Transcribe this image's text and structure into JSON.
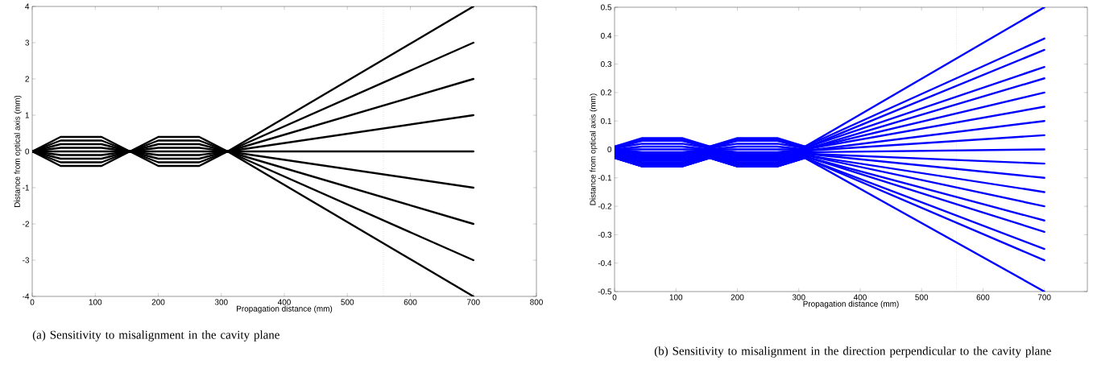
{
  "chart_data": [
    {
      "type": "line",
      "xlabel": "Propagation distance (mm)",
      "ylabel": "Distance from optical axis (mm)",
      "annotations": [
        "(a) Sensitivity to misalignment in the cavity plane"
      ],
      "xlim": [
        0,
        800
      ],
      "ylim": [
        -4,
        4
      ],
      "xticks": [
        0,
        100,
        200,
        300,
        400,
        500,
        600,
        700,
        800
      ],
      "yticks": [
        -4,
        -3,
        -2,
        -1,
        0,
        1,
        2,
        3,
        4
      ],
      "marker": "none",
      "line_style": "solid",
      "x": [
        0,
        45,
        110,
        155,
        200,
        265,
        310,
        700
      ],
      "ref_lines": [
        {
          "axis": "x",
          "value": 557,
          "color": "#aaaaaa",
          "line_style": "dotted"
        }
      ],
      "series": [
        {
          "color": "#000000",
          "values": [
            0,
            0.4,
            0.4,
            0,
            0.4,
            0.4,
            0,
            4
          ]
        },
        {
          "color": "#000000",
          "values": [
            0,
            0.3,
            0.3,
            0,
            0.3,
            0.3,
            0,
            3
          ]
        },
        {
          "color": "#000000",
          "values": [
            0,
            0.2,
            0.2,
            0,
            0.2,
            0.2,
            0,
            2
          ]
        },
        {
          "color": "#000000",
          "values": [
            0,
            0.1,
            0.1,
            0,
            0.1,
            0.1,
            0,
            1
          ]
        },
        {
          "color": "#000000",
          "values": [
            0,
            0,
            0,
            0,
            0,
            0,
            0,
            0
          ]
        },
        {
          "color": "#000000",
          "values": [
            0,
            -0.1,
            -0.1,
            0,
            -0.1,
            -0.1,
            0,
            -1
          ]
        },
        {
          "color": "#000000",
          "values": [
            0,
            -0.2,
            -0.2,
            0,
            -0.2,
            -0.2,
            0,
            -2
          ]
        },
        {
          "color": "#000000",
          "values": [
            0,
            -0.3,
            -0.3,
            0,
            -0.3,
            -0.3,
            0,
            -3
          ]
        },
        {
          "color": "#000000",
          "values": [
            0,
            -0.4,
            -0.4,
            0,
            -0.4,
            -0.4,
            0,
            -4
          ]
        }
      ]
    },
    {
      "type": "line",
      "xlabel": "Propagation distance (mm)",
      "ylabel": "Distance from optical axis (mm)",
      "annotations": [
        "(b) Sensitivity to misalignment in the direction perpendicular to the cavity plane"
      ],
      "xlim": [
        0,
        770
      ],
      "ylim": [
        -0.5,
        0.5
      ],
      "xticks": [
        0,
        100,
        200,
        300,
        400,
        500,
        600,
        700
      ],
      "yticks": [
        -0.5,
        -0.4,
        -0.3,
        -0.2,
        -0.1,
        0,
        0.1,
        0.2,
        0.3,
        0.4,
        0.5
      ],
      "marker": "none",
      "line_style": "solid",
      "x": [
        0,
        45,
        110,
        155,
        200,
        265,
        310,
        700
      ],
      "ref_lines": [
        {
          "axis": "x",
          "value": 557,
          "color": "#aaaaaa",
          "line_style": "dotted"
        }
      ],
      "series": [
        {
          "color": "#0000ff",
          "values": [
            0.01,
            0.04,
            0.04,
            0.01,
            0.04,
            0.04,
            0.01,
            0.5
          ]
        },
        {
          "color": "#0000ff",
          "values": [
            0.01,
            0.035,
            0.035,
            0.01,
            0.035,
            0.035,
            0.01,
            0.39
          ]
        },
        {
          "color": "#0000ff",
          "values": [
            0.005,
            0.03,
            0.03,
            0.005,
            0.03,
            0.03,
            0.005,
            0.35
          ]
        },
        {
          "color": "#0000ff",
          "values": [
            0.005,
            0.02,
            0.02,
            0.005,
            0.02,
            0.02,
            0.005,
            0.29
          ]
        },
        {
          "color": "#0000ff",
          "values": [
            0,
            0.01,
            0.01,
            0,
            0.01,
            0.01,
            0,
            0.25
          ]
        },
        {
          "color": "#0000ff",
          "values": [
            0,
            0,
            0,
            0,
            0,
            0,
            0,
            0.2
          ]
        },
        {
          "color": "#0000ff",
          "values": [
            0,
            -0.01,
            -0.01,
            0,
            -0.01,
            -0.01,
            0,
            0.15
          ]
        },
        {
          "color": "#0000ff",
          "values": [
            -0.005,
            -0.015,
            -0.015,
            -0.005,
            -0.015,
            -0.015,
            -0.005,
            0.1
          ]
        },
        {
          "color": "#0000ff",
          "values": [
            -0.005,
            -0.02,
            -0.02,
            -0.005,
            -0.02,
            -0.02,
            -0.005,
            0.05
          ]
        },
        {
          "color": "#0000ff",
          "values": [
            -0.01,
            -0.025,
            -0.025,
            -0.01,
            -0.025,
            -0.025,
            -0.01,
            0
          ]
        },
        {
          "color": "#0000ff",
          "values": [
            -0.015,
            -0.03,
            -0.03,
            -0.015,
            -0.03,
            -0.03,
            -0.015,
            -0.05
          ]
        },
        {
          "color": "#0000ff",
          "values": [
            -0.015,
            -0.035,
            -0.035,
            -0.015,
            -0.035,
            -0.035,
            -0.015,
            -0.1
          ]
        },
        {
          "color": "#0000ff",
          "values": [
            -0.02,
            -0.04,
            -0.04,
            -0.02,
            -0.04,
            -0.04,
            -0.02,
            -0.15
          ]
        },
        {
          "color": "#0000ff",
          "values": [
            -0.02,
            -0.045,
            -0.045,
            -0.02,
            -0.045,
            -0.045,
            -0.02,
            -0.2
          ]
        },
        {
          "color": "#0000ff",
          "values": [
            -0.025,
            -0.05,
            -0.05,
            -0.025,
            -0.05,
            -0.05,
            -0.025,
            -0.25
          ]
        },
        {
          "color": "#0000ff",
          "values": [
            -0.025,
            -0.055,
            -0.055,
            -0.025,
            -0.055,
            -0.055,
            -0.025,
            -0.29
          ]
        },
        {
          "color": "#0000ff",
          "values": [
            -0.03,
            -0.06,
            -0.06,
            -0.03,
            -0.06,
            -0.06,
            -0.03,
            -0.35
          ]
        },
        {
          "color": "#0000ff",
          "values": [
            -0.03,
            -0.06,
            -0.06,
            -0.03,
            -0.06,
            -0.06,
            -0.03,
            -0.39
          ]
        },
        {
          "color": "#0000ff",
          "values": [
            -0.03,
            -0.06,
            -0.06,
            -0.03,
            -0.06,
            -0.06,
            -0.03,
            -0.5
          ]
        }
      ]
    }
  ]
}
